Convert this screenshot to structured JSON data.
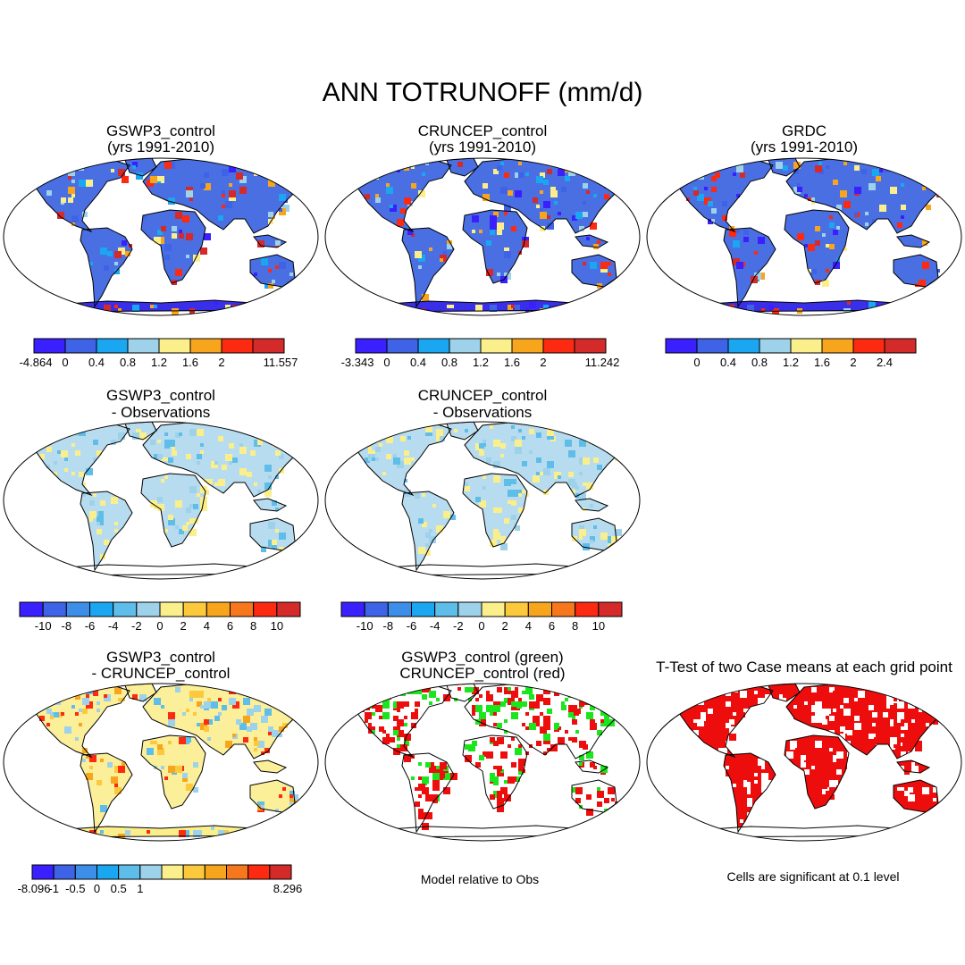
{
  "title": "ANN TOTRUNOFF (mm/d)",
  "palettes": {
    "runoff": [
      "#3a1fff",
      "#3f63e6",
      "#1aa6f0",
      "#9ed1ea",
      "#fbef8c",
      "#f8a51e",
      "#fb2a10",
      "#d42a2a"
    ],
    "diff": [
      "#3a1fff",
      "#3f63e6",
      "#3c8ee8",
      "#1aa6f0",
      "#5fbde9",
      "#9ed1ea",
      "#fbef8c",
      "#fbc93b",
      "#f8a51e",
      "#f7781c",
      "#fb2a10",
      "#d42a2a"
    ],
    "diff3": [
      "#3a1fff",
      "#3f63e6",
      "#3c8ee8",
      "#1aa6f0",
      "#5fbde9",
      "#9ed1ea",
      "#fbef8c",
      "#fbc93b",
      "#f8a51e",
      "#f7781c",
      "#fb2a10",
      "#d42a2a"
    ],
    "panel_dominant": {
      "runoff": "#4a6fe3",
      "diff": "#b8dcef",
      "diff_warm": "#fbef9a",
      "green": "#19e61c",
      "red": "#ee0d0d"
    }
  },
  "chart_data": [
    {
      "type": "heatmap",
      "panel": "r1c1",
      "title_lines": [
        "GSWP3_control",
        "(yrs 1991-2010)"
      ],
      "colorbar": {
        "palette": "runoff",
        "labels": [
          "-4.864",
          "0",
          "0.4",
          "0.8",
          "1.2",
          "1.6",
          "2",
          "11.557"
        ]
      }
    },
    {
      "type": "heatmap",
      "panel": "r1c2",
      "title_lines": [
        "CRUNCEP_control",
        "(yrs 1991-2010)"
      ],
      "colorbar": {
        "palette": "runoff",
        "labels": [
          "-3.343",
          "0",
          "0.4",
          "0.8",
          "1.2",
          "1.6",
          "2",
          "11.242"
        ]
      }
    },
    {
      "type": "heatmap",
      "panel": "r1c3",
      "title_lines": [
        "GRDC",
        "(yrs 1991-2010)"
      ],
      "colorbar": {
        "palette": "runoff",
        "labels": [
          "0",
          "0.4",
          "0.8",
          "1.2",
          "1.6",
          "2",
          "2.4"
        ]
      }
    },
    {
      "type": "heatmap",
      "panel": "r2c1",
      "title_lines": [
        "GSWP3_control",
        "- Observations"
      ],
      "colorbar": {
        "palette": "diff",
        "labels": [
          "-10",
          "-8",
          "-6",
          "-4",
          "-2",
          "0",
          "2",
          "4",
          "6",
          "8",
          "10"
        ]
      }
    },
    {
      "type": "heatmap",
      "panel": "r2c2",
      "title_lines": [
        "CRUNCEP_control",
        "- Observations"
      ],
      "colorbar": {
        "palette": "diff",
        "labels": [
          "-10",
          "-8",
          "-6",
          "-4",
          "-2",
          "0",
          "2",
          "4",
          "6",
          "8",
          "10"
        ]
      }
    },
    {
      "type": "heatmap",
      "panel": "r3c1",
      "title_lines": [
        "GSWP3_control",
        "- CRUNCEP_control"
      ],
      "colorbar": {
        "palette": "diff3",
        "labels": [
          "-8.096",
          "-1",
          "-0.5",
          "0",
          "0.5",
          "1",
          "8.296"
        ]
      }
    },
    {
      "type": "heatmap",
      "panel": "r3c2",
      "title_lines": [
        "GSWP3_control (green)",
        "CRUNCEP_control (red)"
      ],
      "footnote": "Model relative to Obs"
    },
    {
      "type": "heatmap",
      "panel": "r3c3",
      "title_lines": [
        "T-Test of two Case means at each grid point"
      ],
      "footnote": "Cells are significant at 0.1 level"
    }
  ]
}
